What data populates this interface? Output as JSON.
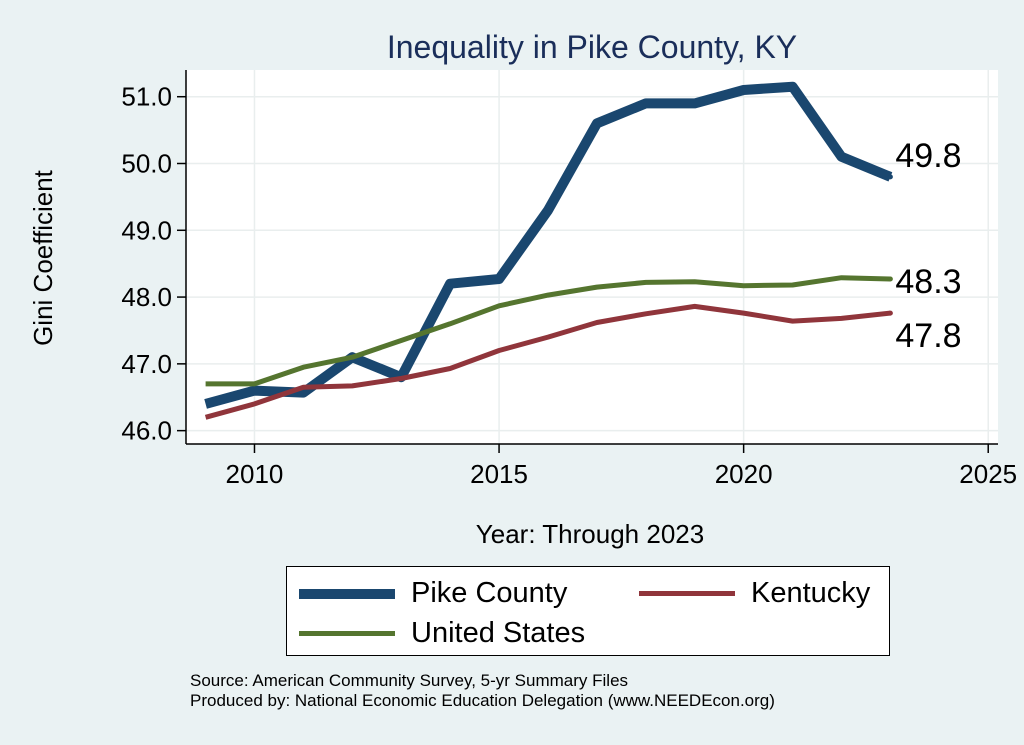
{
  "chart_data": {
    "type": "line",
    "title": "Inequality in Pike County, KY",
    "xlabel": "Year: Through 2023",
    "ylabel": "Gini Coefficient",
    "xlim": [
      2008.6,
      2025.2
    ],
    "ylim": [
      45.8,
      51.4
    ],
    "x_ticks": [
      2010,
      2015,
      2020,
      2025
    ],
    "y_ticks": [
      46.0,
      47.0,
      48.0,
      49.0,
      50.0,
      51.0
    ],
    "x_tick_labels": [
      "2010",
      "2015",
      "2020",
      "2025"
    ],
    "y_tick_labels": [
      "46.0",
      "47.0",
      "48.0",
      "49.0",
      "50.0",
      "51.0"
    ],
    "grid": true,
    "legend_placement": "bottom",
    "x": [
      2009,
      2010,
      2011,
      2012,
      2013,
      2014,
      2015,
      2016,
      2017,
      2018,
      2019,
      2020,
      2021,
      2022,
      2023
    ],
    "series": [
      {
        "name": "Pike County",
        "color": "#1a476f",
        "values": [
          46.4,
          46.6,
          46.57,
          47.1,
          46.8,
          48.2,
          48.27,
          49.3,
          50.6,
          50.9,
          50.9,
          51.1,
          51.15,
          50.1,
          49.8
        ],
        "end_label": "49.8"
      },
      {
        "name": "United States",
        "color": "#55752f",
        "values": [
          46.7,
          46.7,
          46.95,
          47.1,
          47.35,
          47.6,
          47.87,
          48.03,
          48.15,
          48.22,
          48.23,
          48.17,
          48.18,
          48.29,
          48.27
        ],
        "end_label": "48.3"
      },
      {
        "name": "Kentucky",
        "color": "#90353b",
        "values": [
          46.2,
          46.4,
          46.65,
          46.67,
          46.78,
          46.93,
          47.2,
          47.4,
          47.62,
          47.75,
          47.86,
          47.76,
          47.64,
          47.68,
          47.76
        ],
        "end_label": "47.8"
      }
    ]
  },
  "legend": {
    "items": [
      {
        "name": "Pike County",
        "color": "#1a476f"
      },
      {
        "name": "Kentucky",
        "color": "#90353b"
      },
      {
        "name": "United States",
        "color": "#55752f"
      }
    ]
  },
  "source": {
    "line1": "Source: American Community Survey, 5-yr Summary Files",
    "line2": "Produced by: National Economic Education Delegation (www.NEEDEcon.org)"
  }
}
